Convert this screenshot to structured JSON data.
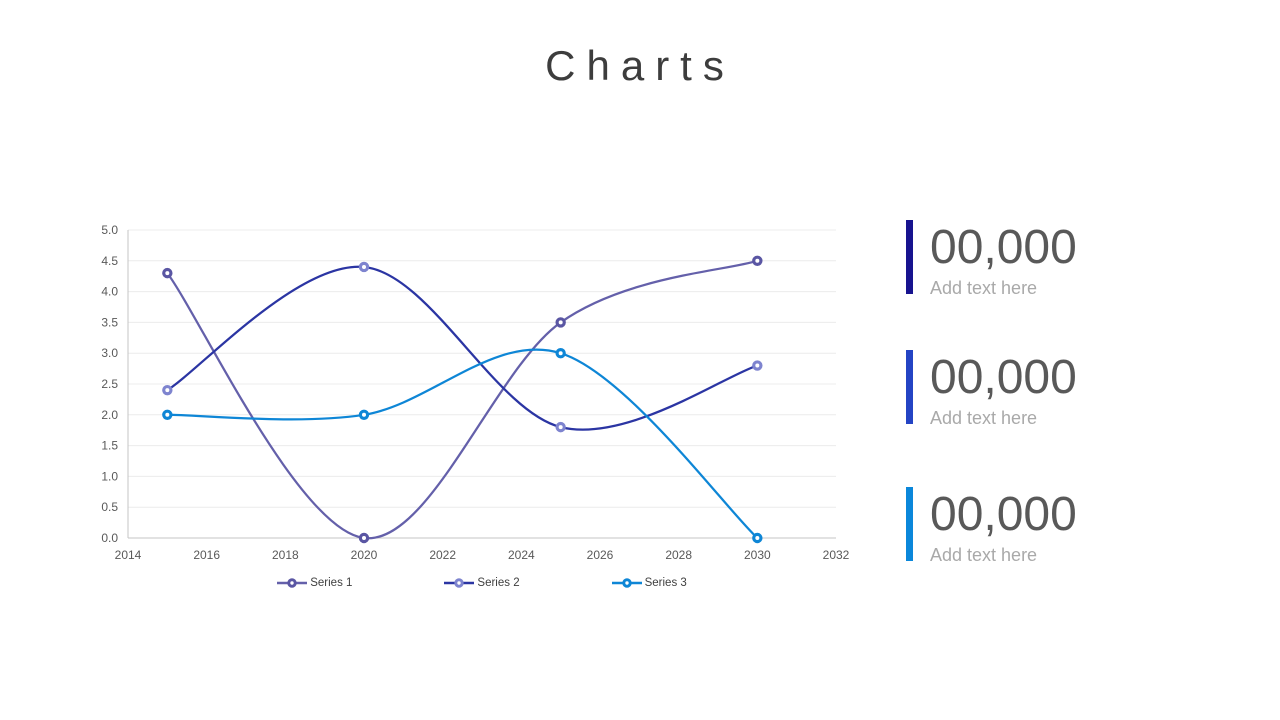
{
  "slide": {
    "title": "Charts"
  },
  "chart_data": {
    "type": "line",
    "smooth": true,
    "x": [
      2015,
      2020,
      2025,
      2030
    ],
    "series": [
      {
        "name": "Series 1",
        "values": [
          4.3,
          0.0,
          3.5,
          4.5
        ],
        "line_color": "#6460aa",
        "marker_color": "#5a56a3"
      },
      {
        "name": "Series 2",
        "values": [
          2.4,
          4.4,
          1.8,
          2.8
        ],
        "line_color": "#2b35a3",
        "marker_color": "#7e84cf"
      },
      {
        "name": "Series 3",
        "values": [
          2.0,
          2.0,
          3.0,
          0.0
        ],
        "line_color": "#0e86d6",
        "marker_color": "#0e86d6"
      }
    ],
    "xlim": [
      2014,
      2032
    ],
    "ylim": [
      0,
      5
    ],
    "xticks": [
      "2014",
      "2016",
      "2018",
      "2020",
      "2022",
      "2024",
      "2026",
      "2028",
      "2030",
      "2032"
    ],
    "yticks": [
      "0.0",
      "0.5",
      "1.0",
      "1.5",
      "2.0",
      "2.5",
      "3.0",
      "3.5",
      "4.0",
      "4.5",
      "5.0"
    ],
    "grid": true,
    "legend_position": "bottom",
    "grid_color": "#ececec",
    "axis_color": "#c4c4c4",
    "tick_label_color": "#595959",
    "title": "",
    "xlabel": "",
    "ylabel": ""
  },
  "stats": {
    "items": [
      {
        "value": "00,000",
        "label": "Add text here",
        "bar_color": "#17138f"
      },
      {
        "value": "00,000",
        "label": "Add text here",
        "bar_color": "#2444c4"
      },
      {
        "value": "00,000",
        "label": "Add text here",
        "bar_color": "#0a87da"
      }
    ]
  }
}
